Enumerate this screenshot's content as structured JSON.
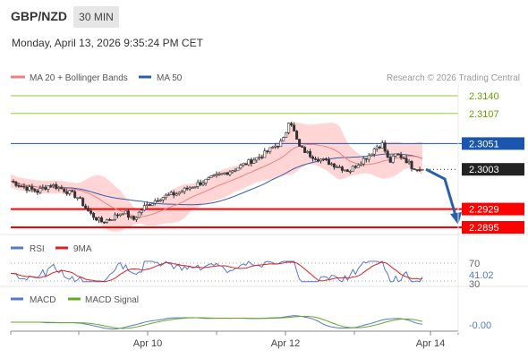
{
  "header": {
    "symbol": "GBP/NZD",
    "interval": "30 MIN",
    "datetime": "Monday, April 13, 2026 9:35:24 PM CET",
    "credit": "Research © 2026 Trading Central"
  },
  "legend": {
    "ma20": "MA 20 + Bollinger Bands",
    "ma50": "MA 50",
    "rsi": "RSI",
    "rsi_ma": "9MA",
    "macd": "MACD",
    "macd_signal": "MACD Signal"
  },
  "colors": {
    "bearish": "#ff0000",
    "bullish": "#99cc33",
    "pivot": "#1a56b0",
    "current": "#222222",
    "ma20": "#f08080",
    "ma50": "#2e5fa8",
    "bands": "#ffd5d5",
    "rsi": "#5577cc",
    "rsi_ma": "#dd2222",
    "macd": "#5577cc",
    "macd_signal": "#66aa22",
    "arrow": "#2660a8"
  },
  "chart_data": {
    "type": "candlestick",
    "x_ticks": [
      "Apr 10",
      "Apr 12",
      "Apr 14"
    ],
    "ylim": [
      2.2885,
      2.316
    ],
    "levels": [
      {
        "label": "2.3140",
        "value": 2.314,
        "kind": "resistance"
      },
      {
        "label": "2.3107",
        "value": 2.3107,
        "kind": "resistance"
      },
      {
        "label": "2.3051",
        "value": 2.3051,
        "kind": "pivot"
      },
      {
        "label": "2.3003",
        "value": 2.3003,
        "kind": "current"
      },
      {
        "label": "2.2929",
        "value": 2.2929,
        "kind": "support"
      },
      {
        "label": "2.2895",
        "value": 2.2895,
        "kind": "support"
      }
    ],
    "close_path": [
      [
        0,
        2.2981
      ],
      [
        10,
        2.297
      ],
      [
        20,
        2.2962
      ],
      [
        30,
        2.2975
      ],
      [
        40,
        2.2965
      ],
      [
        50,
        2.2952
      ],
      [
        60,
        2.292
      ],
      [
        68,
        2.2905
      ],
      [
        76,
        2.2912
      ],
      [
        85,
        2.2925
      ],
      [
        92,
        2.2908
      ],
      [
        100,
        2.2932
      ],
      [
        112,
        2.295
      ],
      [
        125,
        2.2958
      ],
      [
        140,
        2.2975
      ],
      [
        155,
        2.299
      ],
      [
        170,
        2.3005
      ],
      [
        182,
        2.302
      ],
      [
        190,
        2.303
      ],
      [
        198,
        2.3045
      ],
      [
        202,
        2.305
      ],
      [
        206,
        2.306
      ],
      [
        210,
        2.31
      ],
      [
        213,
        2.3075
      ],
      [
        217,
        2.3045
      ],
      [
        225,
        2.303
      ],
      [
        235,
        2.302
      ],
      [
        245,
        2.301
      ],
      [
        255,
        2.3
      ],
      [
        262,
        2.3015
      ],
      [
        270,
        2.303
      ],
      [
        275,
        2.3045
      ],
      [
        280,
        2.305
      ],
      [
        285,
        2.3015
      ],
      [
        290,
        2.303
      ],
      [
        296,
        2.3025
      ],
      [
        302,
        2.3008
      ],
      [
        310,
        2.3003
      ]
    ],
    "last_close": 2.3003,
    "projected_target": 2.2895,
    "rsi": {
      "ylim": [
        25,
        75
      ],
      "levels": [
        70,
        30
      ],
      "level_labels": [
        "70",
        "30"
      ],
      "value_label": "41.02",
      "value": 41.02
    },
    "macd": {
      "value_label": "-0.00",
      "value": 0.0
    }
  }
}
